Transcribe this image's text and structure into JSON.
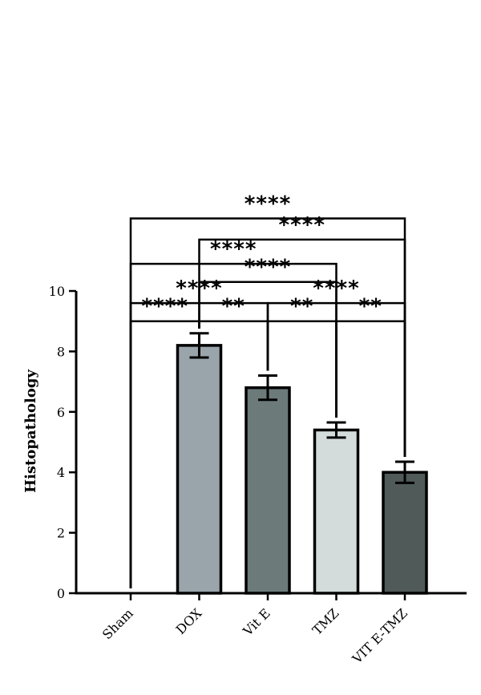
{
  "chart_data": {
    "type": "bar",
    "ylabel": "Histopathology",
    "ylim": [
      0,
      10
    ],
    "yticks": [
      0,
      2,
      4,
      6,
      8,
      10
    ],
    "categories": [
      "Sham",
      "DOX",
      "Vit E",
      "TMZ",
      "VIT E-TMZ"
    ],
    "values": [
      0,
      8.2,
      6.8,
      5.4,
      4.0
    ],
    "errors": [
      0,
      0.4,
      0.4,
      0.25,
      0.35
    ],
    "colors": [
      "#ffffff",
      "#9aa5ab",
      "#6c7a7a",
      "#d3dcda",
      "#505a58"
    ],
    "significance": [
      {
        "from": 0,
        "to": 4,
        "label": "****",
        "y": 12.4
      },
      {
        "from": 1,
        "to": 4,
        "label": "****",
        "y": 11.7
      },
      {
        "from": 0,
        "to": 3,
        "label": "****",
        "y": 10.9
      },
      {
        "from": 1,
        "to": 3,
        "label": "****",
        "y": 10.3
      },
      {
        "from": 0,
        "to": 2,
        "label": "****",
        "y": 9.6
      },
      {
        "from": 2,
        "to": 4,
        "label": "****",
        "y": 9.6
      },
      {
        "from": 0,
        "to": 1,
        "label": "****",
        "y": 9.0
      },
      {
        "from": 1,
        "to": 2,
        "label": "**",
        "y": 9.0
      },
      {
        "from": 2,
        "to": 3,
        "label": "**",
        "y": 9.0
      },
      {
        "from": 3,
        "to": 4,
        "label": "**",
        "y": 9.0
      }
    ]
  }
}
